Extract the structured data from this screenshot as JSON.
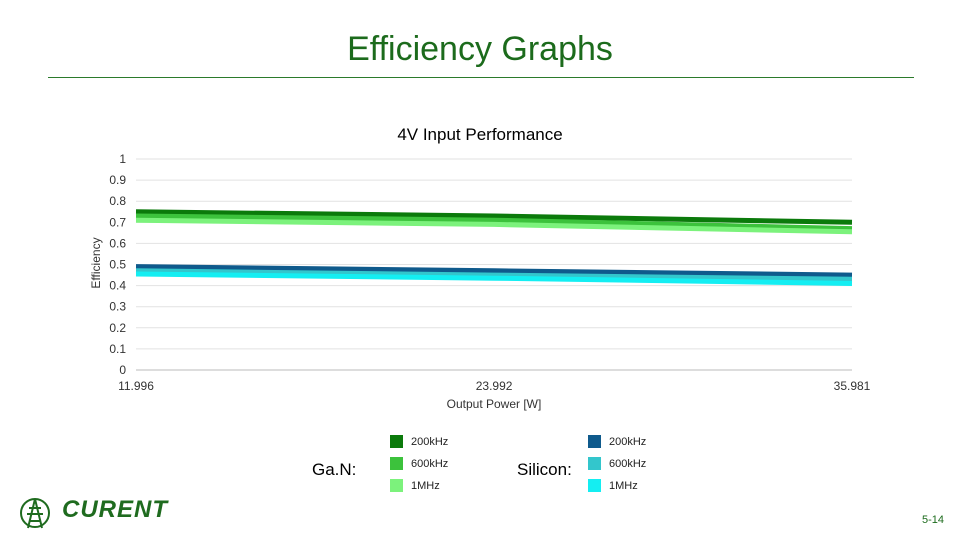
{
  "slide": {
    "title": "Efficiency Graphs",
    "page_number": "5-14",
    "logo_text": "CURENT"
  },
  "legend": {
    "gan_label": "Ga.N:",
    "silicon_label": "Silicon:",
    "gan_items": [
      {
        "label": "200kHz",
        "color": "#0b7a0b"
      },
      {
        "label": "600kHz",
        "color": "#3cc23c"
      },
      {
        "label": "1MHz",
        "color": "#7cf27c"
      }
    ],
    "silicon_items": [
      {
        "label": "200kHz",
        "color": "#0f5a8c"
      },
      {
        "label": "600kHz",
        "color": "#33c6cc"
      },
      {
        "label": "1MHz",
        "color": "#14eef2"
      }
    ]
  },
  "chart_data": {
    "type": "line",
    "title": "4V Input Performance",
    "xlabel": "Output Power [W]",
    "ylabel": "Efficiency",
    "x": [
      11.996,
      23.992,
      35.981
    ],
    "x_tick_labels": [
      "11.996",
      "23.992",
      "35.981"
    ],
    "xlim": [
      11.996,
      35.981
    ],
    "ylim": [
      0,
      1
    ],
    "y_ticks": [
      0,
      0.1,
      0.2,
      0.3,
      0.4,
      0.5,
      0.6,
      0.7,
      0.8,
      0.9,
      1
    ],
    "y_tick_labels": [
      "0",
      "0.1",
      "0.2",
      "0.3",
      "0.4",
      "0.5",
      "0.6",
      "0.7",
      "0.8",
      "0.9",
      "1"
    ],
    "grid": true,
    "series": [
      {
        "name": "GaN 200kHz",
        "color": "#0b7a0b",
        "values": [
          0.75,
          0.73,
          0.7
        ]
      },
      {
        "name": "GaN 600kHz",
        "color": "#3cc23c",
        "values": [
          0.73,
          0.71,
          0.67
        ]
      },
      {
        "name": "GaN 1MHz",
        "color": "#7cf27c",
        "values": [
          0.71,
          0.69,
          0.655
        ]
      },
      {
        "name": "Silicon 200kHz",
        "color": "#0f5a8c",
        "values": [
          0.49,
          0.47,
          0.45
        ]
      },
      {
        "name": "Silicon 600kHz",
        "color": "#33c6cc",
        "values": [
          0.47,
          0.45,
          0.43
        ]
      },
      {
        "name": "Silicon 1MHz",
        "color": "#14eef2",
        "values": [
          0.455,
          0.435,
          0.41
        ]
      }
    ]
  }
}
